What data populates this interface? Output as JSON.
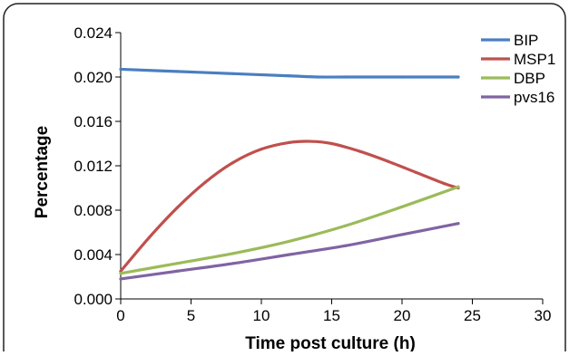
{
  "chart_data": {
    "type": "line",
    "title": "",
    "xlabel": "Time post culture (h)",
    "ylabel": "Percentage",
    "xlim": [
      0,
      30
    ],
    "ylim": [
      0,
      0.024
    ],
    "xticks": [
      "0",
      "5",
      "10",
      "15",
      "20",
      "25",
      "30"
    ],
    "yticks": [
      "0.000",
      "0.004",
      "0.008",
      "0.012",
      "0.016",
      "0.020",
      "0.024"
    ],
    "grid": false,
    "legend_position": "top-right",
    "series": [
      {
        "name": "BIP",
        "color": "#4a7fc1",
        "x": [
          0,
          4,
          8,
          12,
          14,
          16,
          20,
          24
        ],
        "y": [
          0.0207,
          0.0205,
          0.0203,
          0.0201,
          0.02,
          0.02,
          0.02,
          0.02
        ]
      },
      {
        "name": "MSP1",
        "color": "#c0504d",
        "x": [
          0,
          2,
          4,
          6,
          8,
          10,
          12,
          13.5,
          15,
          17,
          19,
          21,
          23,
          24
        ],
        "y": [
          0.0025,
          0.0055,
          0.0082,
          0.0105,
          0.0123,
          0.0135,
          0.0141,
          0.0142,
          0.014,
          0.0133,
          0.0124,
          0.0114,
          0.0104,
          0.01
        ]
      },
      {
        "name": "DBP",
        "color": "#9bbb59",
        "x": [
          0,
          4,
          8,
          12,
          16,
          20,
          24
        ],
        "y": [
          0.0023,
          0.0032,
          0.0041,
          0.0052,
          0.0066,
          0.0083,
          0.0101
        ]
      },
      {
        "name": "pvs16",
        "color": "#8064a2",
        "x": [
          0,
          4,
          8,
          12,
          16,
          20,
          24
        ],
        "y": [
          0.0018,
          0.0025,
          0.0032,
          0.004,
          0.0048,
          0.0058,
          0.0068
        ]
      }
    ]
  }
}
